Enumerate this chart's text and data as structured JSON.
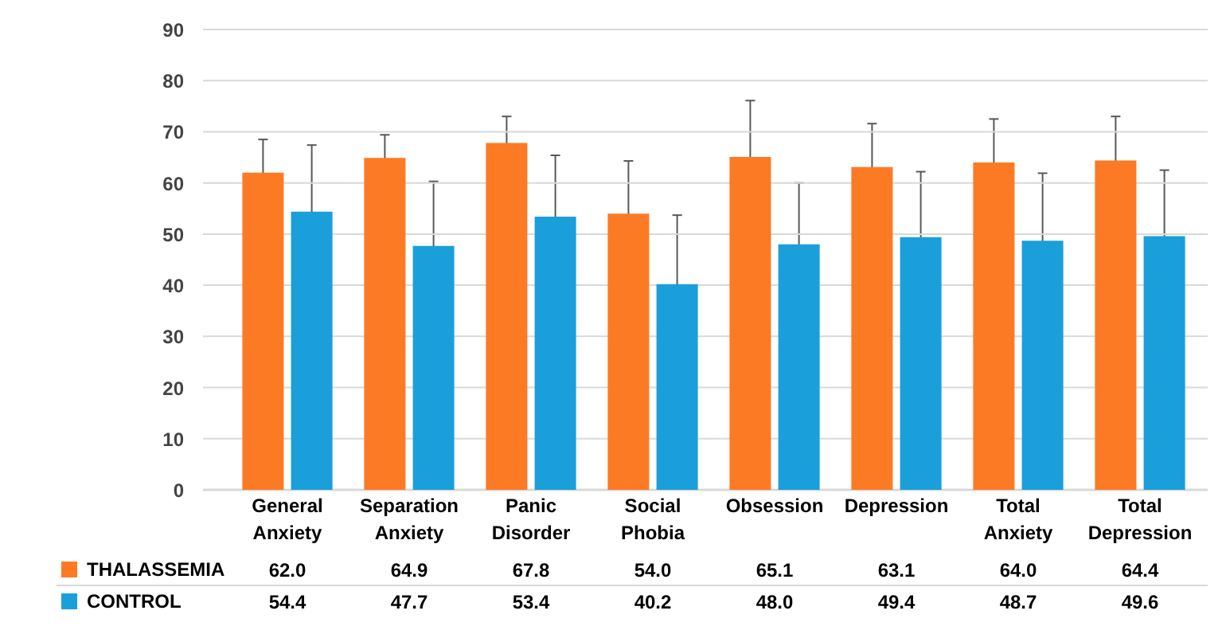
{
  "chart_data": {
    "type": "bar",
    "categories": [
      "General Anxiety",
      "Separation Anxiety",
      "Panic Disorder",
      "Social Phobia",
      "Obsession",
      "Depression",
      "Total Anxiety",
      "Total Depression"
    ],
    "series": [
      {
        "name": "THALASSEMIA",
        "color": "#fd7a24",
        "values": [
          62.0,
          64.9,
          67.8,
          54.0,
          65.1,
          63.1,
          64.0,
          64.4
        ],
        "value_labels": [
          "62.0",
          "64.9",
          "67.8",
          "54.0",
          "65.1",
          "63.1",
          "64.0",
          "64.4"
        ],
        "errors": [
          6.5,
          4.5,
          5.2,
          10.3,
          11.0,
          8.5,
          8.5,
          8.6
        ]
      },
      {
        "name": "CONTROL",
        "color": "#1a9fdb",
        "values": [
          54.4,
          47.7,
          53.4,
          40.2,
          48.0,
          49.4,
          48.7,
          49.6
        ],
        "value_labels": [
          "54.4",
          "47.7",
          "53.4",
          "40.2",
          "48.0",
          "49.4",
          "48.7",
          "49.6"
        ],
        "errors": [
          13.0,
          12.6,
          12.0,
          13.5,
          12.0,
          12.8,
          13.2,
          12.9
        ]
      }
    ],
    "ylim": [
      0,
      90
    ],
    "yticks": [
      0,
      10,
      20,
      30,
      40,
      50,
      60,
      70,
      80,
      90
    ],
    "grid": "y",
    "legend": "bottom left"
  }
}
